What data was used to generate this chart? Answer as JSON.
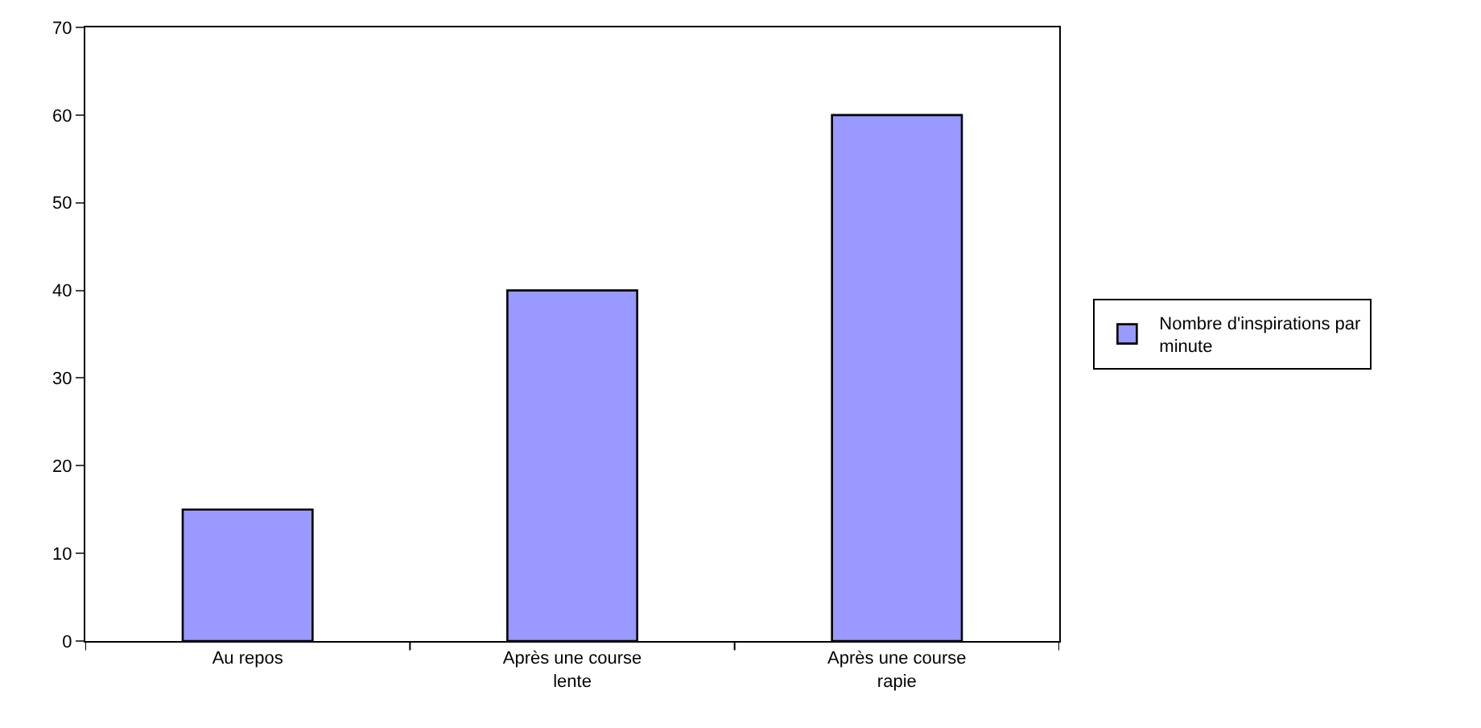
{
  "chart_data": {
    "type": "bar",
    "categories": [
      "Au repos",
      "Après une course lente",
      "Après une course rapie"
    ],
    "series": [
      {
        "name": "Nombre d'inspirations par minute",
        "color": "#9999ff",
        "values": [
          15,
          40,
          60
        ]
      }
    ],
    "ylim": [
      0,
      70
    ],
    "yticks": [
      0,
      10,
      20,
      30,
      40,
      50,
      60,
      70
    ],
    "grid": false,
    "legend": "right"
  }
}
